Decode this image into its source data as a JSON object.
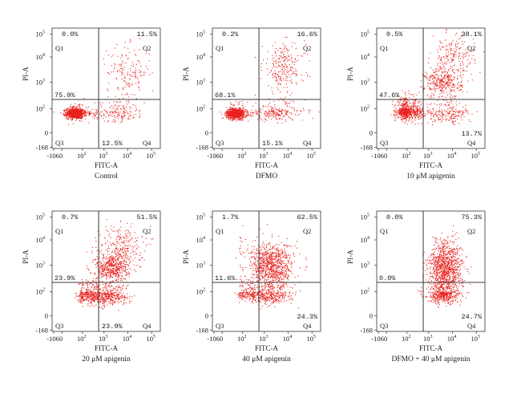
{
  "quadrant_labels": {
    "q1": "Q1",
    "q2": "Q2",
    "q3": "Q3",
    "q4": "Q4"
  },
  "x_ticks": [
    "-106",
    "0",
    "10",
    "10",
    "10",
    "10"
  ],
  "x_tick_exponents": [
    "",
    "",
    "2",
    "3",
    "4",
    "5"
  ],
  "y_ticks": [
    "10",
    "10",
    "10",
    "10",
    "0",
    "-168"
  ],
  "y_tick_exponents": [
    "5",
    "4",
    "3",
    "2",
    "",
    ""
  ],
  "colors": {
    "dots": "#e8231f",
    "lines": "#222222",
    "frame": "#333333"
  },
  "chart_data": [
    {
      "type": "scatter",
      "caption": "Control",
      "xlabel": "FITC-A",
      "ylabel": "PI-A",
      "x_scale": "biexponential",
      "y_scale": "biexponential",
      "quadrants": {
        "Q1": "0.0%",
        "Q2": "11.5%",
        "Q3": "75.9%",
        "Q4": "12.5%"
      },
      "clusters": [
        {
          "x_log": 1.3,
          "y_log": 1.65,
          "sx": 0.45,
          "sy": 0.22,
          "fraction": 0.76
        },
        {
          "x_log": 3.5,
          "y_log": 1.7,
          "sx": 0.6,
          "sy": 0.35,
          "fraction": 0.12
        },
        {
          "x_log": 4.0,
          "y_log": 3.4,
          "sx": 0.45,
          "sy": 0.55,
          "fraction": 0.12
        }
      ]
    },
    {
      "type": "scatter",
      "caption": "DFMO",
      "xlabel": "FITC-A",
      "ylabel": "PI-A",
      "x_scale": "biexponential",
      "y_scale": "biexponential",
      "quadrants": {
        "Q1": "0.2%",
        "Q2": "16.6%",
        "Q3": "68.1%",
        "Q4": "15.1%"
      },
      "clusters": [
        {
          "x_log": 1.3,
          "y_log": 1.65,
          "sx": 0.45,
          "sy": 0.22,
          "fraction": 0.68
        },
        {
          "x_log": 3.5,
          "y_log": 1.7,
          "sx": 0.6,
          "sy": 0.35,
          "fraction": 0.15
        },
        {
          "x_log": 3.8,
          "y_log": 3.6,
          "sx": 0.45,
          "sy": 0.5,
          "fraction": 0.17
        }
      ]
    },
    {
      "type": "scatter",
      "caption": "10 μM apigenin",
      "xlabel": "FITC-A",
      "ylabel": "PI-A",
      "x_scale": "biexponential",
      "y_scale": "biexponential",
      "quadrants": {
        "Q1": "0.5%",
        "Q2": "38.1%",
        "Q3": "47.6%",
        "Q4": "13.7%"
      },
      "clusters": [
        {
          "x_log": 1.9,
          "y_log": 1.8,
          "sx": 0.45,
          "sy": 0.3,
          "fraction": 0.48
        },
        {
          "x_log": 3.6,
          "y_log": 3.0,
          "sx": 0.4,
          "sy": 0.3,
          "fraction": 0.24
        },
        {
          "x_log": 4.0,
          "y_log": 4.0,
          "sx": 0.45,
          "sy": 0.45,
          "fraction": 0.14
        },
        {
          "x_log": 3.8,
          "y_log": 1.6,
          "sx": 0.5,
          "sy": 0.4,
          "fraction": 0.14
        }
      ]
    },
    {
      "type": "scatter",
      "caption": "20 μM apigenin",
      "xlabel": "FITC-A",
      "ylabel": "PI-A",
      "x_scale": "biexponential",
      "y_scale": "biexponential",
      "quadrants": {
        "Q1": "0.7%",
        "Q2": "51.5%",
        "Q3": "23.9%",
        "Q4": "23.9%"
      },
      "clusters": [
        {
          "x_log": 2.3,
          "y_log": 1.8,
          "sx": 0.35,
          "sy": 0.35,
          "fraction": 0.24
        },
        {
          "x_log": 3.3,
          "y_log": 2.9,
          "sx": 0.35,
          "sy": 0.3,
          "fraction": 0.32
        },
        {
          "x_log": 3.7,
          "y_log": 3.7,
          "sx": 0.45,
          "sy": 0.5,
          "fraction": 0.2
        },
        {
          "x_log": 3.2,
          "y_log": 1.7,
          "sx": 0.4,
          "sy": 0.35,
          "fraction": 0.24
        }
      ]
    },
    {
      "type": "scatter",
      "caption": "40 μM apigenin",
      "xlabel": "FITC-A",
      "ylabel": "PI-A",
      "x_scale": "biexponential",
      "y_scale": "biexponential",
      "quadrants": {
        "Q1": "1.7%",
        "Q2": "62.5%",
        "Q3": "11.6%",
        "Q4": "24.3%"
      },
      "clusters": [
        {
          "x_log": 3.3,
          "y_log": 3.0,
          "sx": 0.45,
          "sy": 0.45,
          "fraction": 0.62
        },
        {
          "x_log": 3.2,
          "y_log": 1.7,
          "sx": 0.45,
          "sy": 0.35,
          "fraction": 0.24
        },
        {
          "x_log": 2.2,
          "y_log": 1.9,
          "sx": 0.3,
          "sy": 0.3,
          "fraction": 0.12
        },
        {
          "x_log": 1.9,
          "y_log": 3.5,
          "sx": 0.3,
          "sy": 0.6,
          "fraction": 0.02
        }
      ]
    },
    {
      "type": "scatter",
      "caption": "DFMO + 40 μM apigenin",
      "xlabel": "FITC-A",
      "ylabel": "PI-A",
      "x_scale": "biexponential",
      "y_scale": "biexponential",
      "quadrants": {
        "Q1": "0.0%",
        "Q2": "75.3%",
        "Q3": "0.0%",
        "Q4": "24.7%"
      },
      "clusters": [
        {
          "x_log": 3.7,
          "y_log": 2.9,
          "sx": 0.35,
          "sy": 0.55,
          "fraction": 0.75
        },
        {
          "x_log": 3.6,
          "y_log": 1.7,
          "sx": 0.35,
          "sy": 0.35,
          "fraction": 0.25
        }
      ]
    }
  ]
}
